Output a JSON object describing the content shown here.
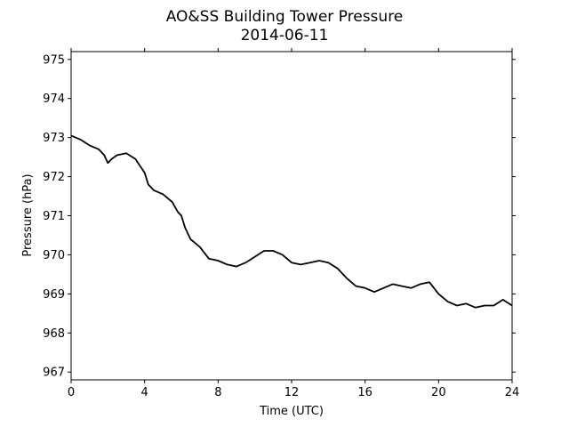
{
  "chart_data": {
    "type": "line",
    "title": "AO&SS Building Tower Pressure",
    "subtitle": "2014-06-11",
    "xlabel": "Time (UTC)",
    "ylabel": "Pressure (hPa)",
    "xlim": [
      0,
      24
    ],
    "ylim": [
      966.8,
      975.2
    ],
    "xticks": [
      0,
      4,
      8,
      12,
      16,
      20,
      24
    ],
    "yticks": [
      967,
      968,
      969,
      970,
      971,
      972,
      973,
      974,
      975
    ],
    "grid": false,
    "line_color": "#000000",
    "series": [
      {
        "x": [
          0,
          0.5,
          1,
          1.5,
          1.8,
          2,
          2.2,
          2.5,
          3,
          3.5,
          4,
          4.2,
          4.5,
          5,
          5.5,
          5.8,
          6,
          6.2,
          6.5,
          7,
          7.5,
          8,
          8.5,
          9,
          9.5,
          10,
          10.5,
          11,
          11.5,
          12,
          12.5,
          13,
          13.5,
          14,
          14.5,
          15,
          15.5,
          16,
          16.5,
          17,
          17.5,
          18,
          18.5,
          19,
          19.5,
          20,
          20.5,
          21,
          21.5,
          22,
          22.5,
          23,
          23.5,
          24
        ],
        "y": [
          973.05,
          972.95,
          972.8,
          972.7,
          972.55,
          972.35,
          972.45,
          972.55,
          972.6,
          972.45,
          972.1,
          971.8,
          971.65,
          971.55,
          971.35,
          971.1,
          971.0,
          970.7,
          970.4,
          970.2,
          969.9,
          969.85,
          969.75,
          969.7,
          969.8,
          969.95,
          970.1,
          970.1,
          970.0,
          969.8,
          969.75,
          969.8,
          969.85,
          969.8,
          969.65,
          969.4,
          969.2,
          969.15,
          969.05,
          969.15,
          969.25,
          969.2,
          969.15,
          969.25,
          969.3,
          969.0,
          968.8,
          968.7,
          968.75,
          968.65,
          968.7,
          968.7,
          968.85,
          968.7
        ]
      }
    ]
  }
}
